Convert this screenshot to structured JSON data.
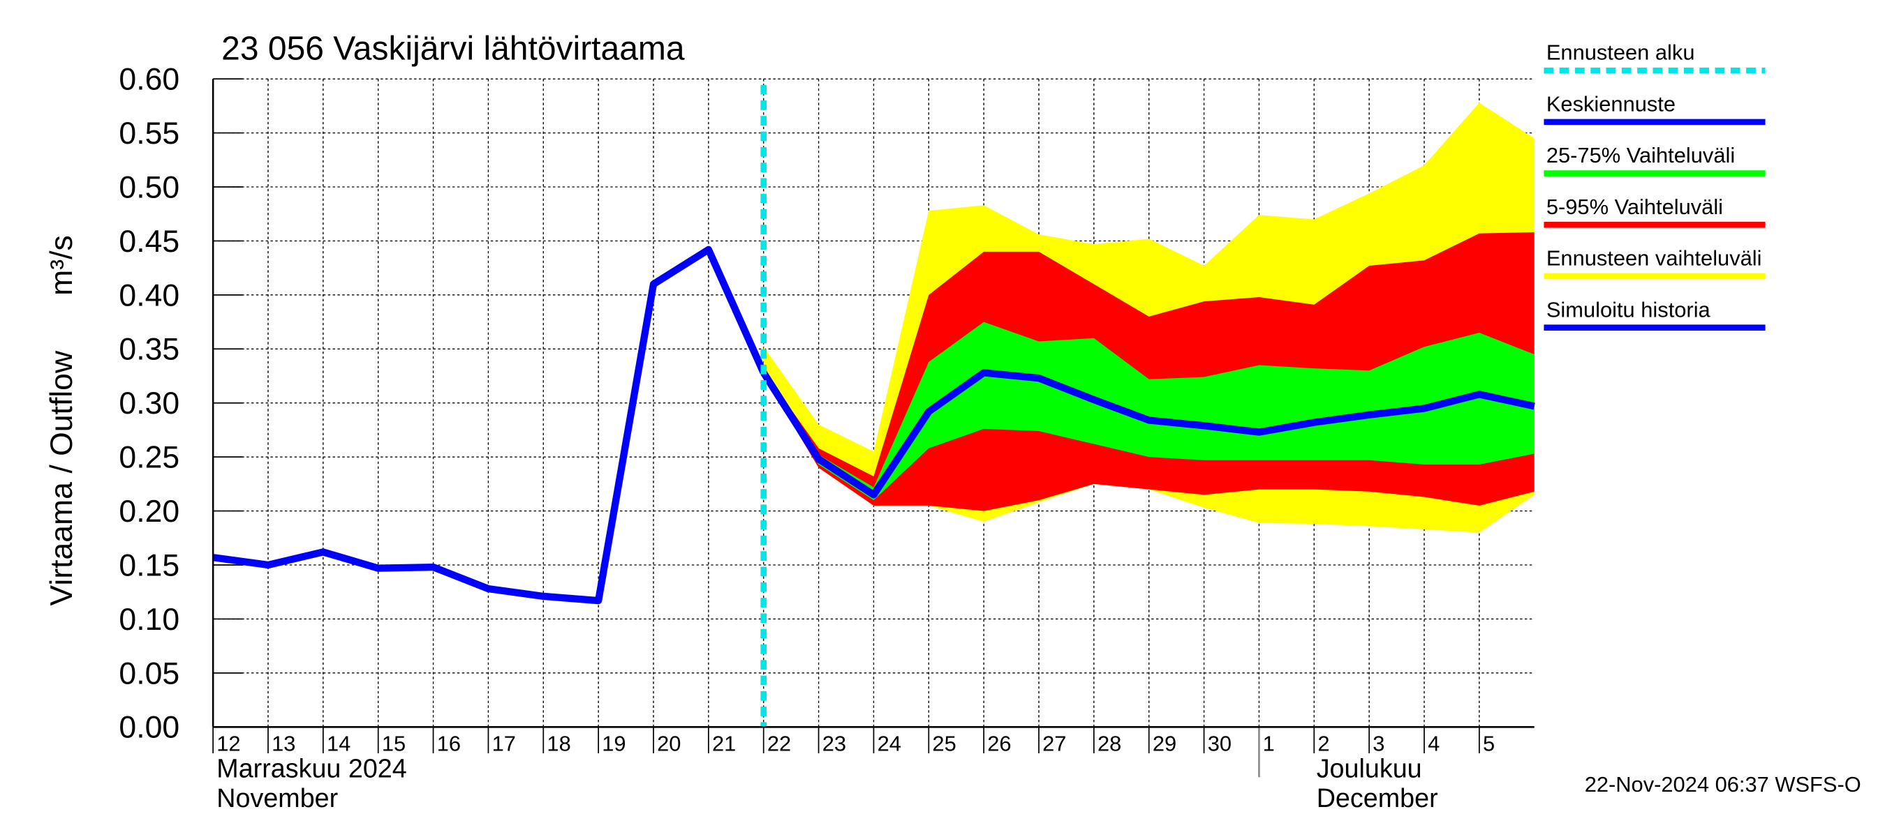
{
  "chart_data": {
    "type": "band-line",
    "title": "23 056 Vaskijärvi lähtövirtaama",
    "ylabel": "Virtaama / Outflow",
    "yunit": "m³/s",
    "month_labels": [
      {
        "x": "2024-11-12",
        "lines": [
          "Marraskuu 2024",
          "November"
        ]
      },
      {
        "x": "2024-12-01",
        "lines": [
          "Joulukuu",
          "December"
        ]
      }
    ],
    "footer": "22-Nov-2024 06:37 WSFS-O",
    "x": [
      "2024-11-12",
      "2024-11-13",
      "2024-11-14",
      "2024-11-15",
      "2024-11-16",
      "2024-11-17",
      "2024-11-18",
      "2024-11-19",
      "2024-11-20",
      "2024-11-21",
      "2024-11-22",
      "2024-11-23",
      "2024-11-24",
      "2024-11-25",
      "2024-11-26",
      "2024-11-27",
      "2024-11-28",
      "2024-11-29",
      "2024-11-30",
      "2024-12-01",
      "2024-12-02",
      "2024-12-03",
      "2024-12-04",
      "2024-12-05",
      "2024-12-06"
    ],
    "xlim": [
      "2024-11-12",
      "2024-12-06"
    ],
    "xticks": [
      {
        "value": "2024-11-12",
        "label": "12"
      },
      {
        "value": "2024-11-13",
        "label": "13"
      },
      {
        "value": "2024-11-14",
        "label": "14"
      },
      {
        "value": "2024-11-15",
        "label": "15"
      },
      {
        "value": "2024-11-16",
        "label": "16"
      },
      {
        "value": "2024-11-17",
        "label": "17"
      },
      {
        "value": "2024-11-18",
        "label": "18"
      },
      {
        "value": "2024-11-19",
        "label": "19"
      },
      {
        "value": "2024-11-20",
        "label": "20"
      },
      {
        "value": "2024-11-21",
        "label": "21"
      },
      {
        "value": "2024-11-22",
        "label": "22"
      },
      {
        "value": "2024-11-23",
        "label": "23"
      },
      {
        "value": "2024-11-24",
        "label": "24"
      },
      {
        "value": "2024-11-25",
        "label": "25"
      },
      {
        "value": "2024-11-26",
        "label": "26"
      },
      {
        "value": "2024-11-27",
        "label": "27"
      },
      {
        "value": "2024-11-28",
        "label": "28"
      },
      {
        "value": "2024-11-29",
        "label": "29"
      },
      {
        "value": "2024-11-30",
        "label": "30"
      },
      {
        "value": "2024-12-01",
        "label": "1"
      },
      {
        "value": "2024-12-02",
        "label": "2"
      },
      {
        "value": "2024-12-03",
        "label": "3"
      },
      {
        "value": "2024-12-04",
        "label": "4"
      },
      {
        "value": "2024-12-05",
        "label": "5"
      }
    ],
    "ylim": [
      0,
      0.6
    ],
    "yticks": [
      {
        "value": 0,
        "label": "0.00"
      },
      {
        "value": 0.05,
        "label": "0.05"
      },
      {
        "value": 0.1,
        "label": "0.10"
      },
      {
        "value": 0.15,
        "label": "0.15"
      },
      {
        "value": 0.2,
        "label": "0.20"
      },
      {
        "value": 0.25,
        "label": "0.25"
      },
      {
        "value": 0.3,
        "label": "0.30"
      },
      {
        "value": 0.35,
        "label": "0.35"
      },
      {
        "value": 0.4,
        "label": "0.40"
      },
      {
        "value": 0.45,
        "label": "0.45"
      },
      {
        "value": 0.5,
        "label": "0.50"
      },
      {
        "value": 0.55,
        "label": "0.55"
      },
      {
        "value": 0.6,
        "label": "0.60"
      }
    ],
    "grid": true,
    "forecast_start": {
      "name": "Ennusteen alku",
      "x": "2024-11-22",
      "color": "#00e5e5"
    },
    "bands": [
      {
        "name": "Ennusteen vaihteluväli",
        "color": "#ffff00",
        "upper": [
          null,
          null,
          null,
          null,
          null,
          null,
          null,
          null,
          null,
          null,
          0.352,
          0.28,
          0.255,
          0.478,
          0.483,
          0.456,
          0.447,
          0.452,
          0.427,
          0.474,
          0.47,
          0.494,
          0.52,
          0.578,
          0.545
        ],
        "lower": [
          null,
          null,
          null,
          null,
          null,
          null,
          null,
          null,
          null,
          null,
          0.33,
          0.24,
          0.205,
          0.205,
          0.19,
          0.208,
          0.225,
          0.22,
          0.203,
          0.189,
          0.188,
          0.186,
          0.183,
          0.18,
          0.215
        ]
      },
      {
        "name": "5-95% Vaihteluväli",
        "color": "#ff0000",
        "upper": [
          null,
          null,
          null,
          null,
          null,
          null,
          null,
          null,
          null,
          null,
          0.33,
          0.258,
          0.232,
          0.4,
          0.44,
          0.44,
          0.41,
          0.38,
          0.394,
          0.398,
          0.391,
          0.427,
          0.432,
          0.457,
          0.458
        ],
        "lower": [
          null,
          null,
          null,
          null,
          null,
          null,
          null,
          null,
          null,
          null,
          0.325,
          0.24,
          0.205,
          0.205,
          0.2,
          0.21,
          0.225,
          0.22,
          0.215,
          0.22,
          0.22,
          0.218,
          0.213,
          0.205,
          0.218
        ]
      },
      {
        "name": "25-75% Vaihteluväli",
        "color": "#00ff00",
        "upper": [
          null,
          null,
          null,
          null,
          null,
          null,
          null,
          null,
          null,
          null,
          0.33,
          0.252,
          0.222,
          0.338,
          0.375,
          0.357,
          0.36,
          0.322,
          0.324,
          0.335,
          0.332,
          0.33,
          0.352,
          0.365,
          0.345
        ],
        "lower": [
          null,
          null,
          null,
          null,
          null,
          null,
          null,
          null,
          null,
          null,
          0.325,
          0.243,
          0.21,
          0.258,
          0.276,
          0.274,
          0.262,
          0.25,
          0.247,
          0.247,
          0.247,
          0.247,
          0.243,
          0.243,
          0.253
        ]
      }
    ],
    "series": [
      {
        "name": "Keskiennuste",
        "color": "#0000ff",
        "values": [
          null,
          null,
          null,
          null,
          null,
          null,
          null,
          null,
          null,
          null,
          0.328,
          0.248,
          0.215,
          0.292,
          0.328,
          0.323,
          0.303,
          0.284,
          0.279,
          0.273,
          0.282,
          0.289,
          0.295,
          0.308,
          0.297
        ]
      },
      {
        "name": "Simuloitu historia",
        "color": "#0000ff",
        "values": [
          0.157,
          0.15,
          0.162,
          0.147,
          0.148,
          0.128,
          0.121,
          0.117,
          0.41,
          0.442,
          0.328,
          null,
          null,
          null,
          null,
          null,
          null,
          null,
          null,
          null,
          null,
          null,
          null,
          null,
          null
        ]
      }
    ],
    "legend_order": [
      "forecast_start",
      "series.0",
      "bands.2",
      "bands.1",
      "bands.0",
      "series.1"
    ]
  }
}
